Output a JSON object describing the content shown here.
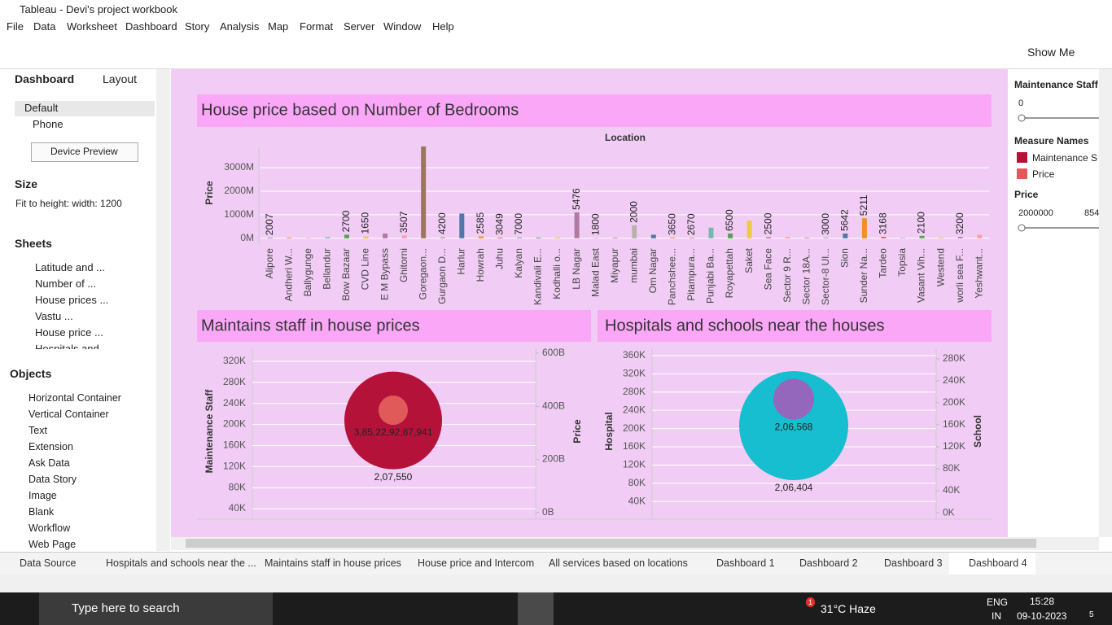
{
  "window": {
    "title": "Tableau - Devi's project workbook"
  },
  "menu": [
    "File",
    "Data",
    "Worksheet",
    "Dashboard",
    "Story",
    "Analysis",
    "Map",
    "Format",
    "Server",
    "Window",
    "Help"
  ],
  "toolbar": {
    "show_me": "Show Me"
  },
  "left_panel": {
    "tabs": [
      "Dashboard",
      "Layout"
    ],
    "devices": [
      "Default",
      "Phone"
    ],
    "device_preview": "Device Preview",
    "size_heading": "Size",
    "size_value": "Fit to height: width: 1200",
    "sheets_heading": "Sheets",
    "sheets": [
      "Latitude and ...",
      "Number of ...",
      "House prices ...",
      "Vastu ...",
      "House price ...",
      "Hospitals and"
    ],
    "objects_heading": "Objects",
    "objects": [
      "Horizontal Container",
      "Vertical Container",
      "Text",
      "Extension",
      "Ask Data",
      "Data Story",
      "Image",
      "Blank",
      "Workflow",
      "Web Page"
    ]
  },
  "right_panel": {
    "filter1_title": "Maintenance Staff",
    "filter1_value": 0,
    "legend_title": "Measure Names",
    "legend": [
      {
        "name": "Maintenance S",
        "color": "#b5123a"
      },
      {
        "name": "Price",
        "color": "#e05a5a"
      }
    ],
    "filter2_title": "Price",
    "filter2_min": 2000000,
    "filter2_max": 854
  },
  "charts": [
    {
      "type": "bar",
      "title": "House price based on Number of Bedrooms",
      "x_label": "Location",
      "y_label": "Price",
      "categories": [
        "Alipore",
        "Andheri W...",
        "Ballygunge",
        "Bellandur",
        "Bow Bazaar",
        "CVD Line",
        "E M Bypass",
        "Ghitorni",
        "Goregaon...",
        "Gurgaon D...",
        "Harlur",
        "Howrah",
        "Juhu",
        "Kalyan",
        "Kandivali E...",
        "Kodhalli o...",
        "LB Nagar",
        "Malad East",
        "Miyapur",
        "mumbai",
        "Om Nagar",
        "Panchshee...",
        "Pitampura...",
        "Punjabi Ba...",
        "Royapettah",
        "Saket",
        "Sea Face",
        "Sector 9 R...",
        "Sector 18A...",
        "Sector-8 Ul...",
        "Sion",
        "Sunder Na...",
        "Tardeo",
        "Topsia",
        "Vasant Vih...",
        "Westend",
        "worli sea F...",
        "Yeshwant..."
      ],
      "values": [
        20,
        30,
        10,
        50,
        150,
        80,
        200,
        120,
        3900,
        60,
        1050,
        80,
        30,
        40,
        30,
        40,
        1100,
        20,
        20,
        550,
        150,
        30,
        20,
        450,
        200,
        750,
        50,
        60,
        20,
        40,
        200,
        850,
        60,
        20,
        100,
        30,
        60,
        150
      ],
      "bar_labels": [
        2007,
        null,
        null,
        null,
        2700,
        1650,
        null,
        3507,
        null,
        4200,
        null,
        2585,
        3049,
        7000,
        null,
        null,
        5476,
        1800,
        null,
        2000,
        null,
        3650,
        2670,
        null,
        6500,
        null,
        2500,
        null,
        null,
        3000,
        5642,
        5211,
        3168,
        null,
        2100,
        null,
        3200,
        null
      ],
      "colors": [
        "#4e79a7",
        "#f28e2b",
        "#e15759",
        "#76b7b2",
        "#59a14f",
        "#edc948",
        "#b07aa1",
        "#ff9da7",
        "#9c755f",
        "#bab0ac"
      ],
      "ylim": [
        -250,
        3900
      ],
      "yticks": [
        {
          "value": 0,
          "label": "0M"
        },
        {
          "value": 1000,
          "label": "1000M"
        },
        {
          "value": 2000,
          "label": "2000M"
        },
        {
          "value": 3000,
          "label": "3000M"
        }
      ],
      "grid": true
    },
    {
      "type": "bubble",
      "title": "Maintains staff in house prices",
      "series": [
        {
          "name": "Maintenance Staff",
          "color": "#b5123a",
          "values": [
            207550
          ],
          "value_labels": [
            "2,07,550"
          ]
        },
        {
          "name": "Price",
          "color": "#e05a5a",
          "axis": "y2",
          "values": [
            385229287941
          ],
          "value_labels": [
            "3,85,22,92,87,941"
          ]
        }
      ],
      "ylim": [
        20000,
        340000
      ],
      "yticks": [
        {
          "value": 40000,
          "label": "40K"
        },
        {
          "value": 80000,
          "label": "80K"
        },
        {
          "value": 120000,
          "label": "120K"
        },
        {
          "value": 160000,
          "label": "160K"
        },
        {
          "value": 200000,
          "label": "200K"
        },
        {
          "value": 240000,
          "label": "240K"
        },
        {
          "value": 280000,
          "label": "280K"
        },
        {
          "value": 320000,
          "label": "320K"
        }
      ],
      "y2lim": [
        -25000000000,
        609000000000
      ],
      "y2ticks": [
        {
          "value": 0,
          "label": "0B"
        },
        {
          "value": 200000000000,
          "label": "200B"
        },
        {
          "value": 400000000000,
          "label": "400B"
        },
        {
          "value": 600000000000,
          "label": "600B"
        }
      ],
      "grid": true
    },
    {
      "type": "bubble",
      "title": "Hospitals and schools near the houses",
      "series": [
        {
          "name": "Hospital",
          "color": "#17becf",
          "values": [
            206404
          ],
          "value_labels": [
            "2,06,404"
          ]
        },
        {
          "name": "School",
          "color": "#9467bd",
          "axis": "y2",
          "values": [
            206568
          ],
          "value_labels": [
            "2,06,568"
          ]
        }
      ],
      "ylim": [
        1300,
        370500
      ],
      "yticks": [
        {
          "value": 40000,
          "label": "40K"
        },
        {
          "value": 80000,
          "label": "80K"
        },
        {
          "value": 120000,
          "label": "120K"
        },
        {
          "value": 160000,
          "label": "160K"
        },
        {
          "value": 200000,
          "label": "200K"
        },
        {
          "value": 240000,
          "label": "240K"
        },
        {
          "value": 280000,
          "label": "280K"
        },
        {
          "value": 320000,
          "label": "320K"
        },
        {
          "value": 360000,
          "label": "360K"
        }
      ],
      "y2lim": [
        -11700,
        294600
      ],
      "y2ticks": [
        {
          "value": 0,
          "label": "0K"
        },
        {
          "value": 40000,
          "label": "40K"
        },
        {
          "value": 80000,
          "label": "80K"
        },
        {
          "value": 120000,
          "label": "120K"
        },
        {
          "value": 160000,
          "label": "160K"
        },
        {
          "value": 200000,
          "label": "200K"
        },
        {
          "value": 240000,
          "label": "240K"
        },
        {
          "value": 280000,
          "label": "280K"
        }
      ],
      "grid": true
    }
  ],
  "tabs": [
    "Data Source",
    "Hospitals and schools near the ...",
    "Maintains staff in house prices",
    "House price and Intercom",
    "All services based on locations",
    "Dashboard 1",
    "Dashboard 2",
    "Dashboard 3",
    "Dashboard 4"
  ],
  "taskbar": {
    "search": "Type here to search",
    "weather_badge": 1,
    "weather": "31°C  Haze",
    "lang": [
      "ENG",
      "IN"
    ],
    "time": "15:28",
    "date": "09-10-2023",
    "notifications": 5
  }
}
